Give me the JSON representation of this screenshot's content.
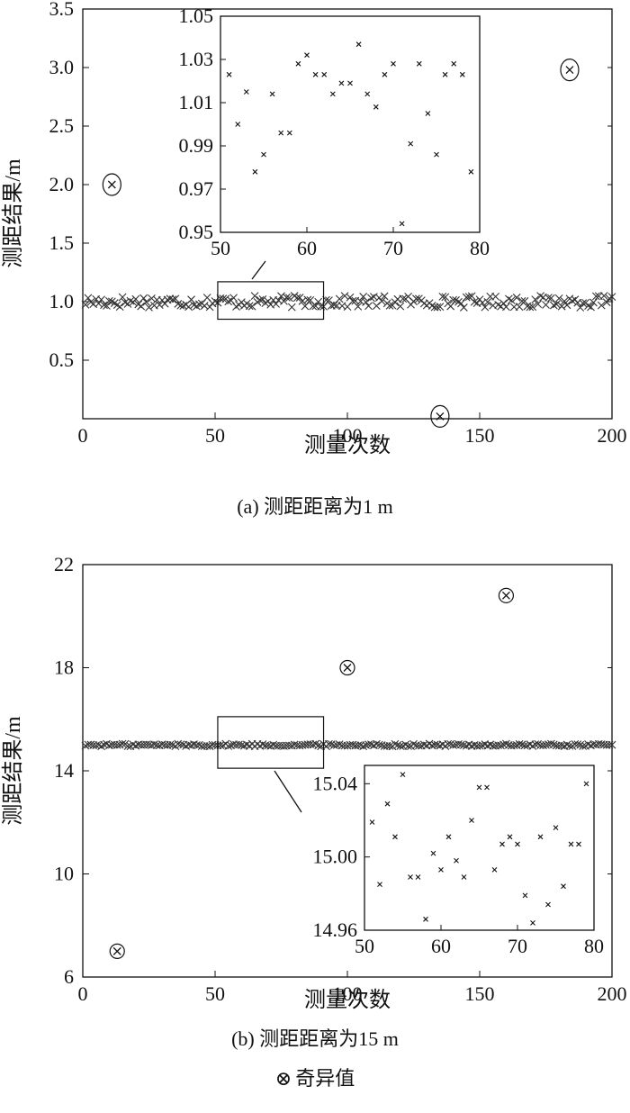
{
  "chart_data": [
    {
      "id": "a",
      "type": "scatter",
      "caption": "(a) 测距距离为1 m",
      "xlabel": "测量次数",
      "ylabel": "测距结果/m",
      "xlim": [
        0,
        200
      ],
      "ylim": [
        0,
        3.5
      ],
      "xticks": [
        0,
        50,
        100,
        150,
        200
      ],
      "yticks": [
        0.5,
        1.0,
        1.5,
        2.0,
        2.5,
        3.0,
        3.5
      ],
      "ytick_labels": [
        "0.5",
        "1.0",
        "1.5",
        "2.0",
        "2.5",
        "3.0",
        "3.5"
      ],
      "main_band_center": 1.0,
      "main_band_spread": 0.05,
      "outliers": [
        {
          "x": 11,
          "y": 2.0
        },
        {
          "x": 184,
          "y": 2.98
        },
        {
          "x": 135,
          "y": 0.02
        }
      ],
      "zoom_box": {
        "xlim": [
          51,
          91
        ],
        "ylim": [
          0.85,
          1.17
        ]
      },
      "inset": {
        "xlim": [
          50,
          80
        ],
        "ylim": [
          0.95,
          1.05
        ],
        "xticks": [
          50,
          60,
          70,
          80
        ],
        "yticks": [
          0.95,
          0.97,
          0.99,
          1.01,
          1.03,
          1.05
        ],
        "ytick_labels": [
          "0.95",
          "0.97",
          "0.99",
          "1.01",
          "1.03",
          "1.05"
        ],
        "points": [
          [
            51,
            1.023
          ],
          [
            52,
            1.0
          ],
          [
            53,
            1.015
          ],
          [
            54,
            0.978
          ],
          [
            55,
            0.986
          ],
          [
            56,
            1.014
          ],
          [
            57,
            0.996
          ],
          [
            58,
            0.996
          ],
          [
            59,
            1.028
          ],
          [
            60,
            1.032
          ],
          [
            61,
            1.023
          ],
          [
            62,
            1.023
          ],
          [
            63,
            1.014
          ],
          [
            64,
            1.019
          ],
          [
            65,
            1.019
          ],
          [
            66,
            1.037
          ],
          [
            67,
            1.014
          ],
          [
            68,
            1.008
          ],
          [
            69,
            1.023
          ],
          [
            70,
            1.028
          ],
          [
            71,
            0.954
          ],
          [
            72,
            0.991
          ],
          [
            73,
            1.028
          ],
          [
            74,
            1.005
          ],
          [
            75,
            0.986
          ],
          [
            76,
            1.023
          ],
          [
            77,
            1.028
          ],
          [
            78,
            1.023
          ],
          [
            79,
            0.978
          ]
        ]
      }
    },
    {
      "id": "b",
      "type": "scatter",
      "caption": "(b)  测距距离为15 m",
      "xlabel": "测量次数",
      "ylabel": "测距结果/m",
      "xlim": [
        0,
        200
      ],
      "ylim": [
        6,
        22
      ],
      "xticks": [
        0,
        50,
        100,
        150,
        200
      ],
      "yticks": [
        6,
        10,
        14,
        18,
        22
      ],
      "ytick_labels": [
        "6",
        "10",
        "14",
        "18",
        "22"
      ],
      "main_band_center": 15.0,
      "main_band_spread": 0.05,
      "outliers": [
        {
          "x": 13,
          "y": 7.0
        },
        {
          "x": 100,
          "y": 18.0
        },
        {
          "x": 160,
          "y": 20.8
        }
      ],
      "zoom_box": {
        "xlim": [
          51,
          91
        ],
        "ylim": [
          14.1,
          16.1
        ]
      },
      "inset": {
        "xlim": [
          50,
          80
        ],
        "ylim": [
          14.96,
          15.05
        ],
        "xticks": [
          50,
          60,
          70,
          80
        ],
        "yticks": [
          14.96,
          15.0,
          15.04
        ],
        "ytick_labels": [
          "14.96",
          "15.00",
          "15.04"
        ],
        "points": [
          [
            51,
            15.019
          ],
          [
            52,
            14.985
          ],
          [
            53,
            15.029
          ],
          [
            54,
            15.011
          ],
          [
            55,
            15.045
          ],
          [
            56,
            14.989
          ],
          [
            57,
            14.989
          ],
          [
            58,
            14.966
          ],
          [
            59,
            15.002
          ],
          [
            60,
            14.993
          ],
          [
            61,
            15.011
          ],
          [
            62,
            14.998
          ],
          [
            63,
            14.989
          ],
          [
            64,
            15.02
          ],
          [
            65,
            15.038
          ],
          [
            66,
            15.038
          ],
          [
            67,
            14.993
          ],
          [
            68,
            15.007
          ],
          [
            69,
            15.011
          ],
          [
            70,
            15.007
          ],
          [
            71,
            14.979
          ],
          [
            72,
            14.964
          ],
          [
            73,
            15.011
          ],
          [
            74,
            14.974
          ],
          [
            75,
            15.016
          ],
          [
            76,
            14.984
          ],
          [
            77,
            15.007
          ],
          [
            78,
            15.007
          ],
          [
            79,
            15.04
          ]
        ]
      }
    }
  ],
  "legend": {
    "symbol": "⊗",
    "label": "奇异值"
  },
  "colors": {
    "ink": "#111111",
    "band": "#333333"
  }
}
